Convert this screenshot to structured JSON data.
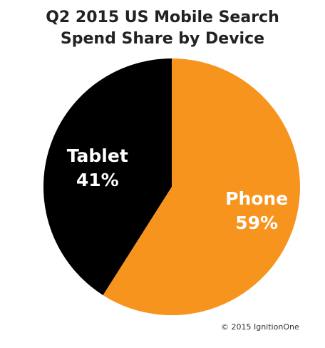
{
  "chart_data": {
    "type": "pie",
    "title_lines": [
      "Q2 2015 US Mobile Search",
      "Spend Share by Device"
    ],
    "slices": [
      {
        "label": "Tablet",
        "value": 41,
        "value_label": "41%",
        "color": "#000000"
      },
      {
        "label": "Phone",
        "value": 59,
        "value_label": "59%",
        "color": "#F7941D"
      }
    ],
    "legend": "none"
  },
  "copyright": "© 2015 IgnitionOne"
}
